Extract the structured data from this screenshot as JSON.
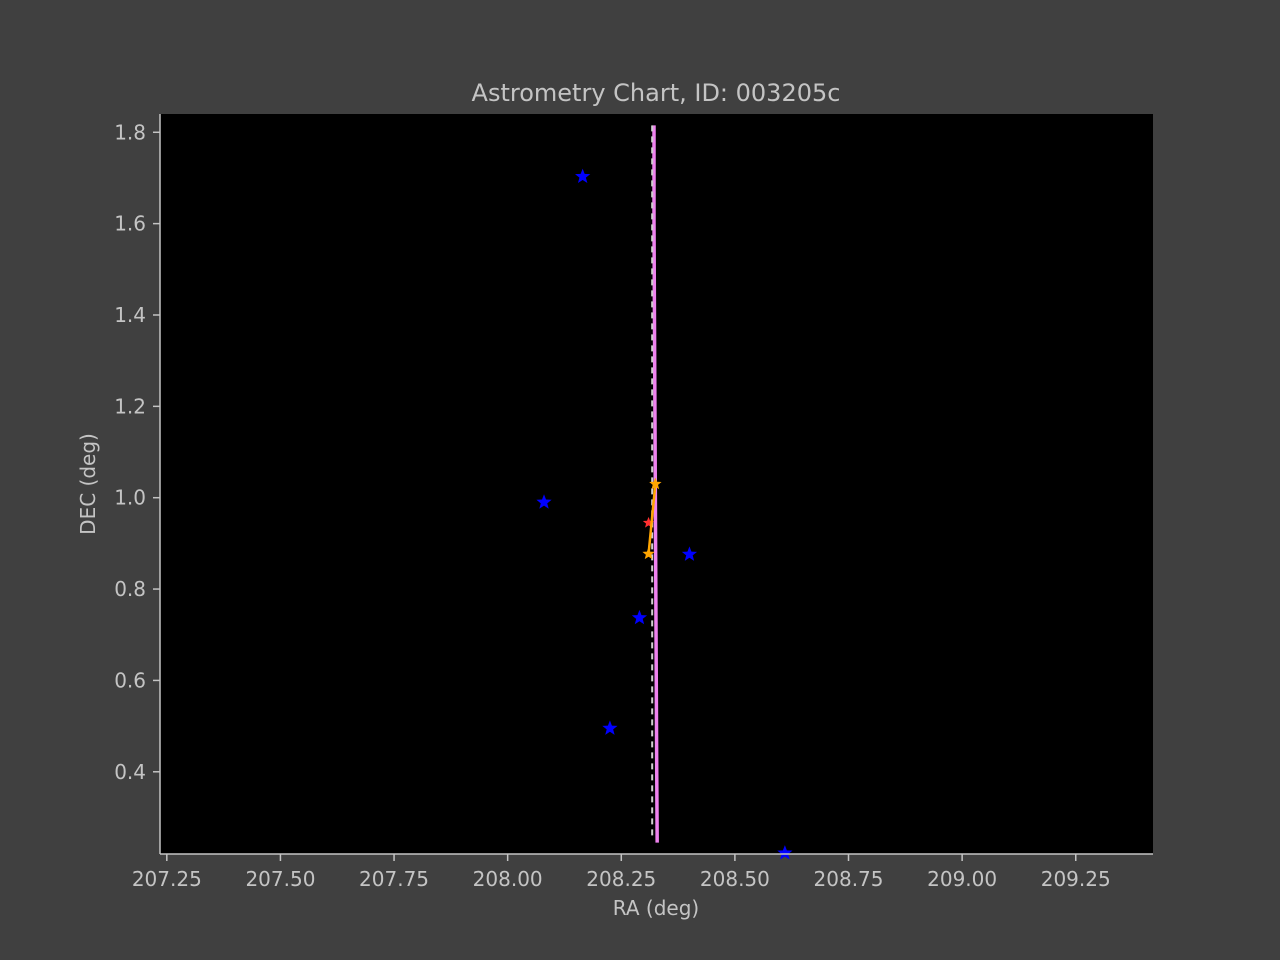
{
  "chart_data": {
    "type": "scatter",
    "title": "Astrometry Chart, ID: 003205c",
    "xlabel": "RA (deg)",
    "ylabel": "DEC (deg)",
    "xlim": [
      207.235,
      209.42
    ],
    "ylim": [
      0.22,
      1.84
    ],
    "xticks": [
      207.25,
      207.5,
      207.75,
      208.0,
      208.25,
      208.5,
      208.75,
      209.0,
      209.25
    ],
    "xtick_labels": [
      "207.25",
      "207.50",
      "207.75",
      "208.00",
      "208.25",
      "208.50",
      "208.75",
      "209.00",
      "209.25"
    ],
    "yticks": [
      0.4,
      0.6,
      0.8,
      1.0,
      1.2,
      1.4,
      1.6,
      1.8
    ],
    "ytick_labels": [
      "0.4",
      "0.6",
      "0.8",
      "1.0",
      "1.2",
      "1.4",
      "1.6",
      "1.8"
    ],
    "grid": false,
    "colors": {
      "background": "#404040",
      "plot_area": "#000000",
      "axis_text": "#c4c4c4",
      "stars": "#0000ff",
      "track": "#ffa500",
      "target": "#ff3030",
      "predicted_path": "#ee82ee",
      "center_line": "#d0d0d0"
    },
    "stars": [
      {
        "ra": 208.165,
        "dec": 1.703
      },
      {
        "ra": 208.08,
        "dec": 0.99
      },
      {
        "ra": 208.4,
        "dec": 0.876
      },
      {
        "ra": 208.29,
        "dec": 0.737
      },
      {
        "ra": 208.225,
        "dec": 0.495
      },
      {
        "ra": 208.61,
        "dec": 0.222
      }
    ],
    "track": [
      {
        "ra": 208.325,
        "dec": 1.03
      },
      {
        "ra": 208.31,
        "dec": 0.877
      }
    ],
    "target": {
      "ra": 208.31,
      "dec": 0.945
    },
    "predicted_path": [
      {
        "ra": 208.322,
        "dec": 1.815
      },
      {
        "ra": 208.322,
        "dec": 1.6
      },
      {
        "ra": 208.323,
        "dec": 1.4
      },
      {
        "ra": 208.324,
        "dec": 1.2
      },
      {
        "ra": 208.325,
        "dec": 1.0
      },
      {
        "ra": 208.326,
        "dec": 0.8
      },
      {
        "ra": 208.327,
        "dec": 0.6
      },
      {
        "ra": 208.328,
        "dec": 0.4
      },
      {
        "ra": 208.329,
        "dec": 0.245
      }
    ],
    "center_line": {
      "ra": 208.318,
      "dec_range": [
        0.25,
        1.815
      ]
    }
  }
}
